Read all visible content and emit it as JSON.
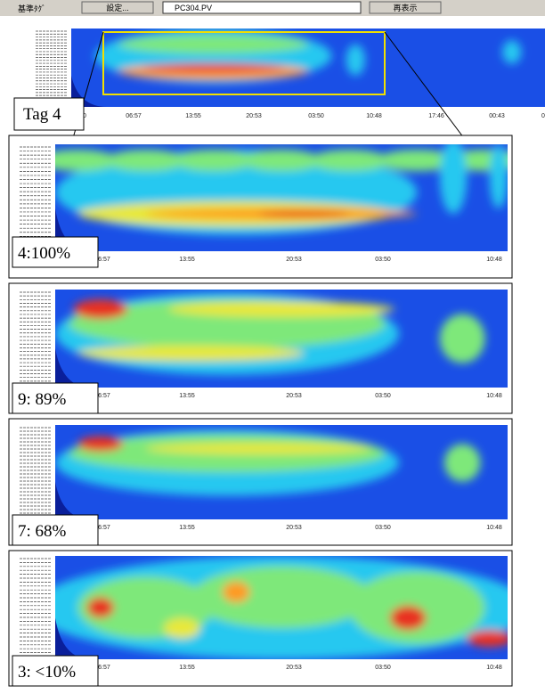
{
  "toolbar": {
    "label": "基準ﾀｸﾞ",
    "settings_button": "設定...",
    "tag_field": "PC304.PV",
    "refresh_button": "再表示"
  },
  "overview": {
    "callout": "Tag 4",
    "x_labels": [
      "0",
      "06:57",
      "13:55",
      "20:53",
      "03:50",
      "10:48",
      "17:46",
      "00:43",
      "0"
    ]
  },
  "panels": [
    {
      "label": "4:100%",
      "x_labels": [
        "06:57",
        "13:55",
        "20:53",
        "03:50",
        "10:48"
      ]
    },
    {
      "label": "9: 89%",
      "x_labels": [
        "06:57",
        "13:55",
        "20:53",
        "03:50",
        "10:48"
      ]
    },
    {
      "label": "7: 68%",
      "x_labels": [
        "06:57",
        "13:55",
        "20:53",
        "03:50",
        "10:48"
      ]
    },
    {
      "label": "3: <10%",
      "x_labels": [
        "06:57",
        "13:55",
        "20:53",
        "03:50",
        "10:48"
      ]
    }
  ]
}
